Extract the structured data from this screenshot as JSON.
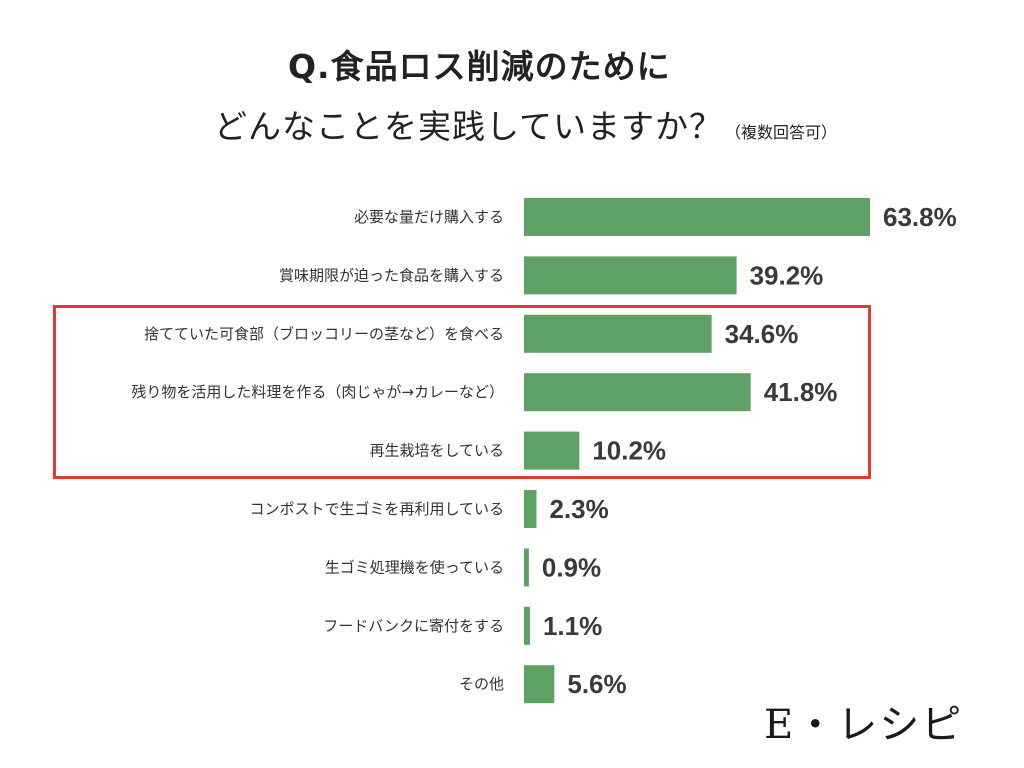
{
  "title": {
    "line1": "Q.食品ロス削減のために",
    "line2": "どんなことを実践していますか？",
    "note": "（複数回答可）"
  },
  "brand": {
    "logo_text": "E・レシピ"
  },
  "colors": {
    "bar": "#5fa064",
    "highlight": "#e53935"
  },
  "chart_data": {
    "type": "bar",
    "orientation": "horizontal",
    "unit": "%",
    "categories": [
      "必要な量だけ購入する",
      "賞味期限が迫った食品を購入する",
      "捨てていた可食部（ブロッコリーの茎など）を食べる",
      "残り物を活用した料理を作る（肉じゃが→カレーなど）",
      "再生栽培をしている",
      "コンポストで生ゴミを再利用している",
      "生ゴミ処理機を使っている",
      "フードバンクに寄付をする",
      "その他"
    ],
    "values": [
      63.8,
      39.2,
      34.6,
      41.8,
      10.2,
      2.3,
      0.9,
      1.1,
      5.6
    ],
    "value_labels": [
      "63.8%",
      "39.2%",
      "34.6%",
      "41.8%",
      "10.2%",
      "2.3%",
      "0.9%",
      "1.1%",
      "5.6%"
    ],
    "highlighted_categories": [
      "捨てていた可食部（ブロッコリーの茎など）を食べる",
      "残り物を活用した料理を作る（肉じゃが→カレーなど）",
      "再生栽培をしている"
    ],
    "xlim": [
      0,
      63.8
    ],
    "grid": false,
    "legend": "none"
  }
}
